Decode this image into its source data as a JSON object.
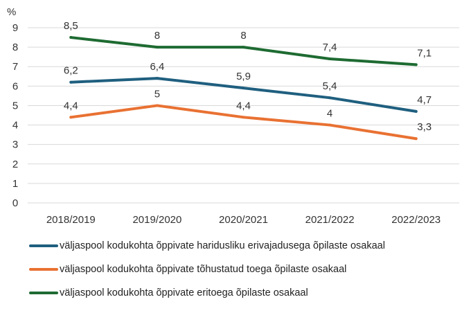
{
  "chart_data": {
    "type": "line",
    "ylabel": "%",
    "categories": [
      "2018/2019",
      "2019/2020",
      "2020/2021",
      "2021/2022",
      "2022/2023"
    ],
    "ylim": [
      0,
      9
    ],
    "yticks": [
      "0",
      "1",
      "2",
      "3",
      "4",
      "5",
      "6",
      "7",
      "8",
      "9"
    ],
    "grid": true,
    "legend_position": "bottom",
    "series": [
      {
        "name": "väljaspool kodukohta õppivate haridusliku erivajadusega õpilaste osakaal",
        "color": "#1f5f7f",
        "values": [
          6.2,
          6.4,
          5.9,
          5.4,
          4.7
        ],
        "labels": [
          "6,2",
          "6,4",
          "5,9",
          "5,4",
          "4,7"
        ]
      },
      {
        "name": "väljaspool kodukohta õppivate tõhustatud toega õpilaste osakaal",
        "color": "#e97132",
        "values": [
          4.4,
          5,
          4.4,
          4,
          3.3
        ],
        "labels": [
          "4,4",
          "5",
          "4,4",
          "4",
          "3,3"
        ]
      },
      {
        "name": "väljaspool kodukohta õppivate eritoega õpilaste osakaal",
        "color": "#1e6b32",
        "values": [
          8.5,
          8,
          8,
          7.4,
          7.1
        ],
        "labels": [
          "8,5",
          "8",
          "8",
          "7,4",
          "7,1"
        ]
      }
    ]
  }
}
